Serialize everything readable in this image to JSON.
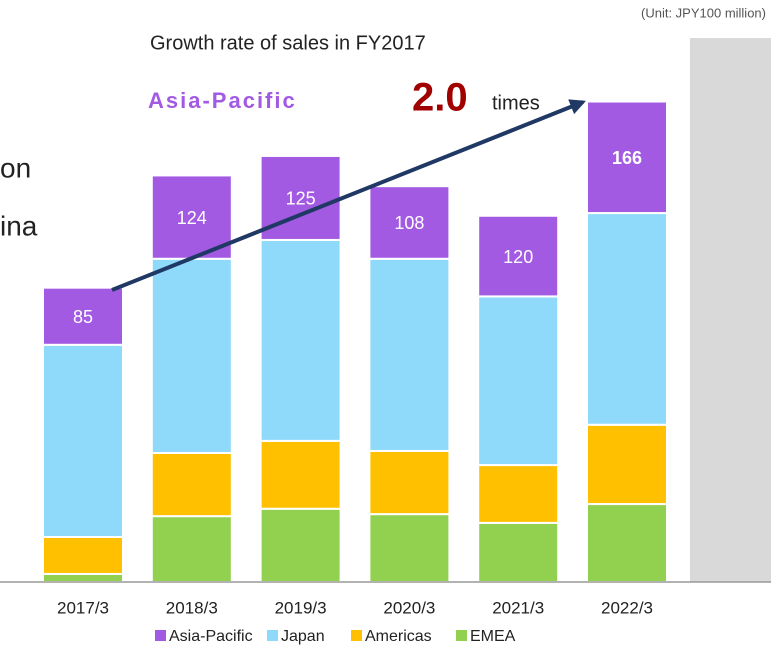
{
  "chart_data": {
    "type": "bar",
    "stacked": true,
    "unit_note": "(Unit: JPY100 million)",
    "title": "Growth rate of sales in FY2017",
    "annotations": {
      "region": "Asia-Pacific",
      "ratio": "2.0",
      "suffix": "times"
    },
    "cropped_texts": [
      "on",
      "ina"
    ],
    "categories": [
      "2017/3",
      "2018/3",
      "2019/3",
      "2020/3",
      "2021/3",
      "2022/3"
    ],
    "series": [
      {
        "name": "Asia-Pacific",
        "color": "#a35ae3",
        "values": [
          85,
          124,
          125,
          108,
          120,
          166
        ],
        "labeled": true
      },
      {
        "name": "Japan",
        "color": "#8fd9fb",
        "values": [
          286,
          289,
          299,
          286,
          251,
          315
        ]
      },
      {
        "name": "Americas",
        "color": "#ffc000",
        "values": [
          55,
          94,
          101,
          94,
          86,
          118
        ]
      },
      {
        "name": "EMEA",
        "color": "#92d050",
        "values": [
          12,
          98,
          109,
          101,
          88,
          116
        ]
      }
    ]
  }
}
